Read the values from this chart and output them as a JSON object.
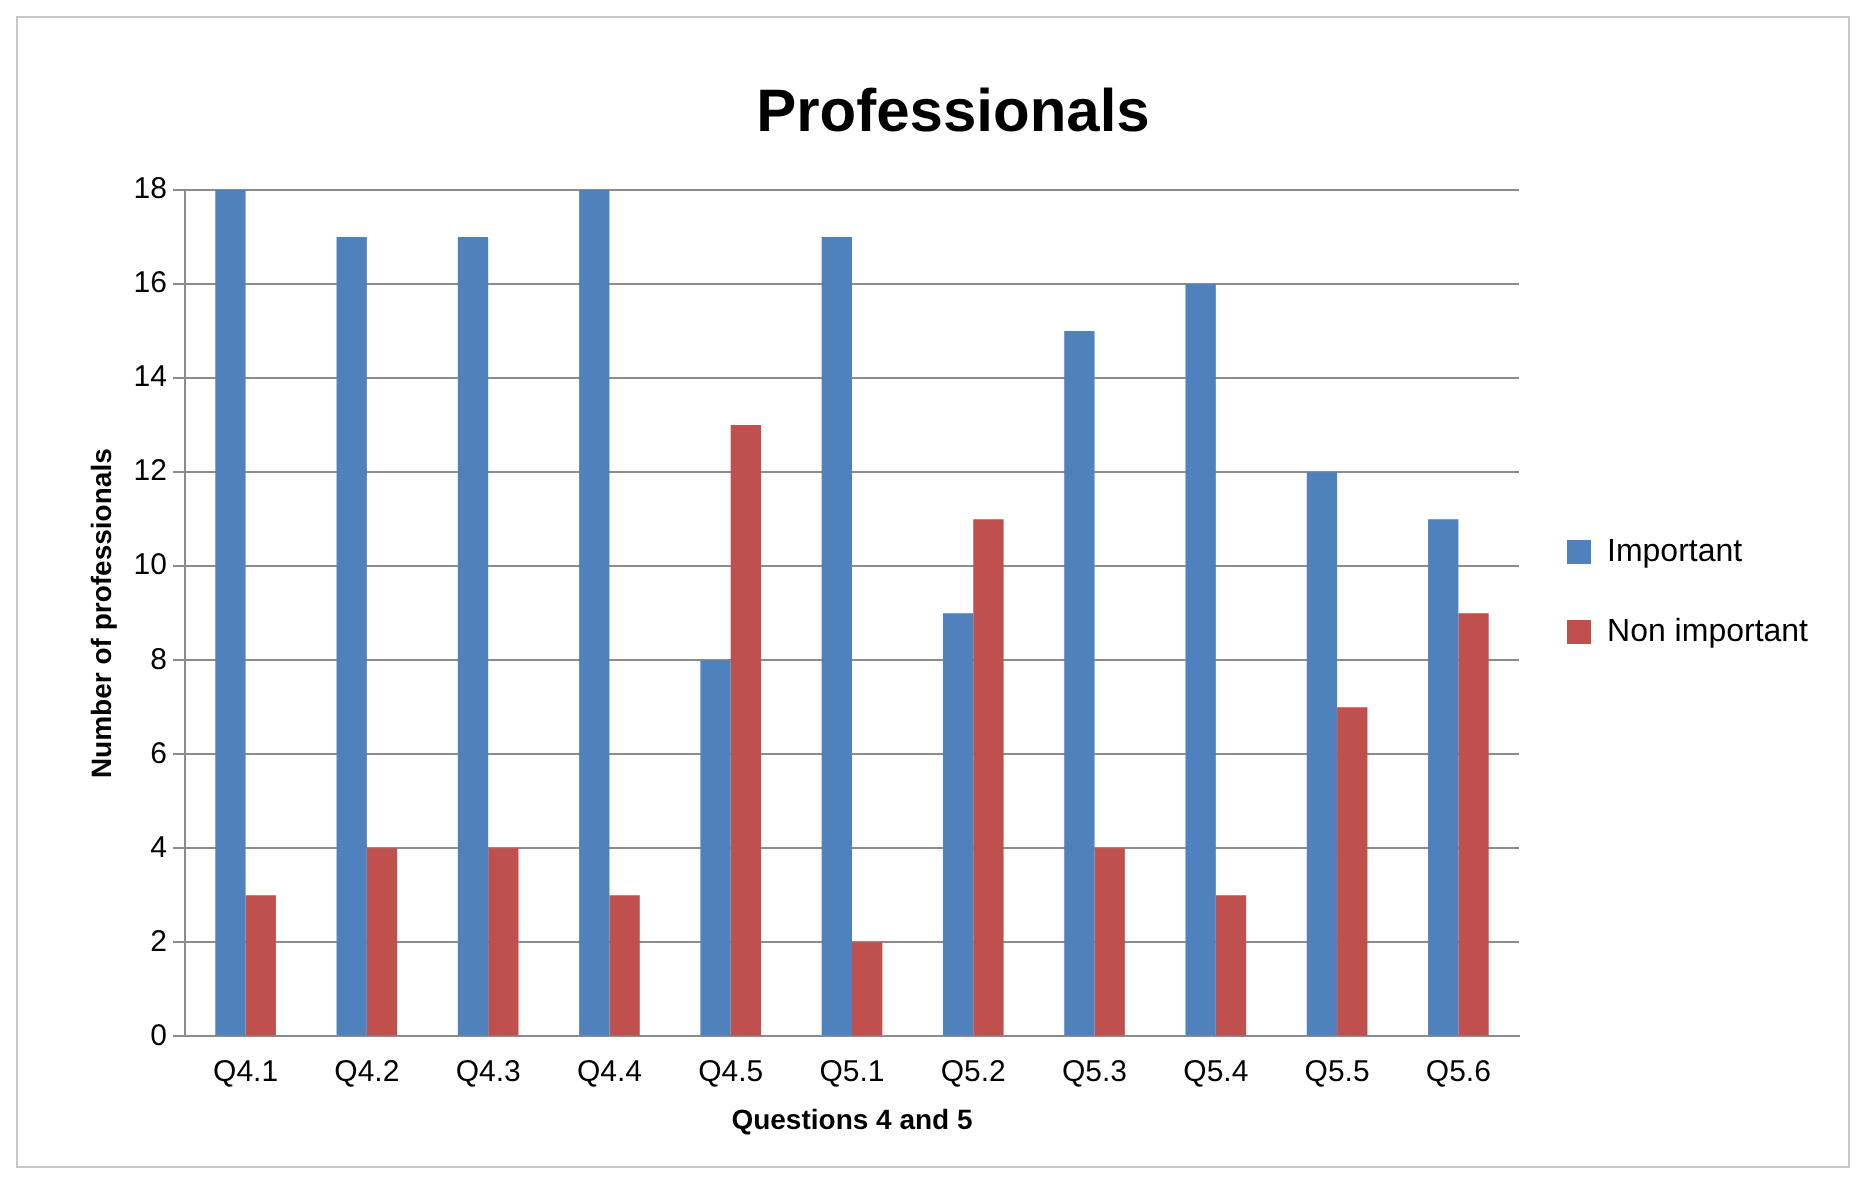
{
  "chart_data": {
    "type": "bar",
    "title": "Professionals",
    "xlabel": "Questions 4 and 5",
    "ylabel": "Number of professionals",
    "categories": [
      "Q4.1",
      "Q4.2",
      "Q4.3",
      "Q4.4",
      "Q4.5",
      "Q5.1",
      "Q5.2",
      "Q5.3",
      "Q5.4",
      "Q5.5",
      "Q5.6"
    ],
    "series": [
      {
        "name": "Important",
        "color": "#4f81bd",
        "values": [
          18,
          17,
          17,
          18,
          8,
          17,
          9,
          15,
          16,
          12,
          11
        ]
      },
      {
        "name": "Non important",
        "color": "#c0504d",
        "values": [
          3,
          4,
          4,
          3,
          13,
          2,
          11,
          4,
          3,
          7,
          9
        ]
      }
    ],
    "ylim": [
      0,
      18
    ],
    "yticks": [
      0,
      2,
      4,
      6,
      8,
      10,
      12,
      14,
      16,
      18
    ],
    "grid": "y",
    "legend": "right"
  }
}
